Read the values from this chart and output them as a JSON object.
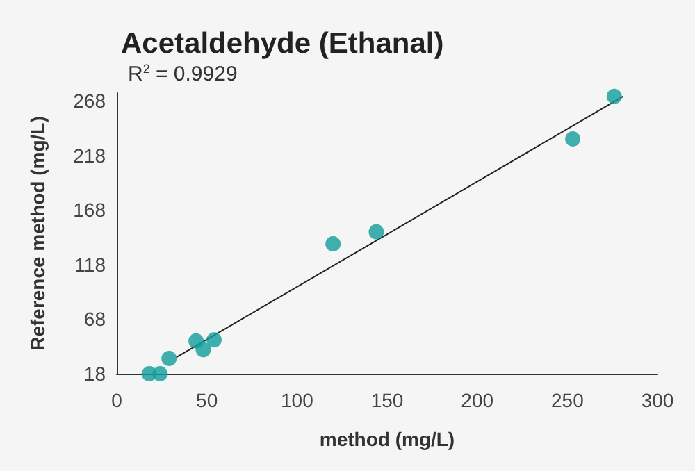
{
  "chart_data": {
    "type": "scatter",
    "title": "Acetaldehyde (Ethanal)",
    "xlabel": "method (mg/L)",
    "ylabel": "Reference method (mg/L)",
    "annotations": [
      "R$^{2}$ = 0.9929"
    ],
    "x": [
      18,
      24,
      29,
      44,
      48,
      54,
      120,
      144,
      253,
      276
    ],
    "series": [
      {
        "color": "#109e9b",
        "values": [
          18,
          18,
          32,
          48,
          40,
          49,
          137,
          148,
          233,
          272
        ]
      },
      {
        "type": "line",
        "color": "#222222",
        "x": [
          33,
          281
        ],
        "values": [
          33,
          272
        ],
        "marker": "none",
        "line_style": "solid"
      }
    ],
    "xlim": [
      0,
      300
    ],
    "xticks": [
      0,
      50,
      100,
      150,
      200,
      250,
      300
    ],
    "ylim": [
      18,
      275
    ],
    "yticks": [
      18,
      68,
      118,
      168,
      218,
      268
    ],
    "grid": false,
    "marker": "circle"
  }
}
